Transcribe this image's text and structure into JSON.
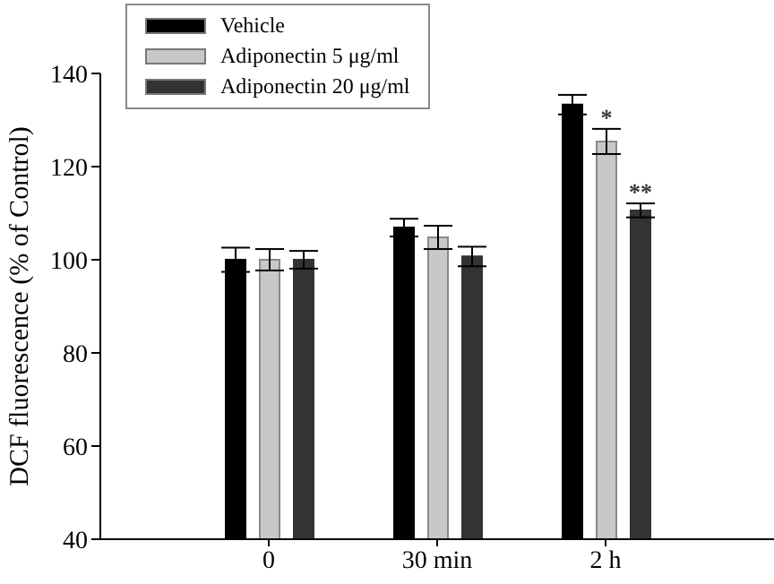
{
  "chart_data": {
    "type": "bar",
    "ylabel": "DCF  fluorescence (% of Control)",
    "categories": [
      "0",
      "30 min",
      "2 h"
    ],
    "series": [
      {
        "name": "Vehicle",
        "color": "#000000",
        "values": [
          100,
          106.9,
          133.3
        ],
        "errors": [
          2.6,
          1.9,
          2.1
        ]
      },
      {
        "name": "Adiponectin 5 μg/ml",
        "color": "#c8c8c8",
        "values": [
          100,
          104.8,
          125.4
        ],
        "errors": [
          2.3,
          2.5,
          2.7
        ]
      },
      {
        "name": "Adiponectin 20 μg/ml",
        "color": "#333333",
        "values": [
          100,
          100.7,
          110.6
        ],
        "errors": [
          1.9,
          2.1,
          1.5
        ]
      }
    ],
    "ylim": [
      40,
      140
    ],
    "yticks": [
      40,
      60,
      80,
      100,
      120,
      140
    ],
    "legend": "top left",
    "annotations": [
      {
        "text": "*",
        "x": "2 h",
        "y": 128.1
      },
      {
        "text": "**",
        "x": "2 h",
        "y": 112.1
      }
    ]
  }
}
